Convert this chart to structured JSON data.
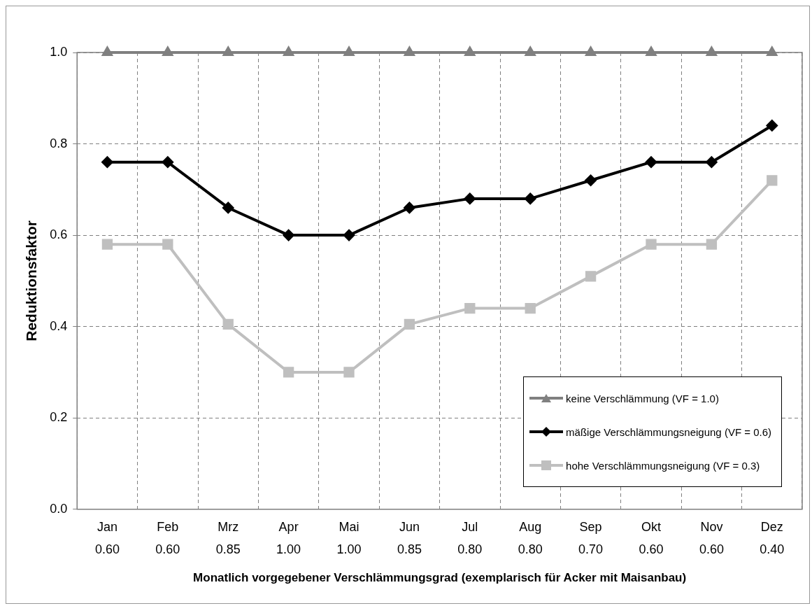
{
  "chart_data": {
    "type": "line",
    "xlabel": "Monatlich vorgegebener Verschlämmungsgrad (exemplarisch für Acker mit Maisanbau)",
    "ylabel": "Reduktionsfaktor",
    "categories": [
      "Jan\n0.60",
      "Feb\n0.60",
      "Mrz\n0.85",
      "Apr\n1.00",
      "Mai\n1.00",
      "Jun\n0.85",
      "Jul\n0.80",
      "Aug\n0.80",
      "Sep\n0.70",
      "Okt\n0.60",
      "Nov\n0.60",
      "Dez\n0.40"
    ],
    "series": [
      {
        "name": "keine Verschlämmung (VF = 1.0)",
        "color": "#808080",
        "marker": "triangle",
        "values": [
          1,
          1,
          1,
          1,
          1,
          1,
          1,
          1,
          1,
          1,
          1,
          1
        ]
      },
      {
        "name": "mäßige Verschlämmungsneigung (VF = 0.6)",
        "color": "#000000",
        "marker": "diamond",
        "values": [
          0.76,
          0.76,
          0.66,
          0.6,
          0.6,
          0.66,
          0.68,
          0.68,
          0.72,
          0.76,
          0.76,
          0.84
        ]
      },
      {
        "name": "hohe Verschlämmungsneigung (VF = 0.3)",
        "color": "#bfbfbf",
        "marker": "square",
        "values": [
          0.58,
          0.58,
          0.405,
          0.3,
          0.3,
          0.405,
          0.44,
          0.44,
          0.51,
          0.58,
          0.58,
          0.72
        ]
      }
    ],
    "ylim": [
      0,
      1
    ],
    "yticks": [
      {
        "value": 0,
        "label": "0.0"
      },
      {
        "value": 0.2,
        "label": "0.2"
      },
      {
        "value": 0.4,
        "label": "0.4"
      },
      {
        "value": 0.6,
        "label": "0.6"
      },
      {
        "value": 0.8,
        "label": "0.8"
      },
      {
        "value": 1,
        "label": "1.0"
      }
    ],
    "grid": true,
    "legend": "bottom right",
    "line_style": "solid"
  }
}
